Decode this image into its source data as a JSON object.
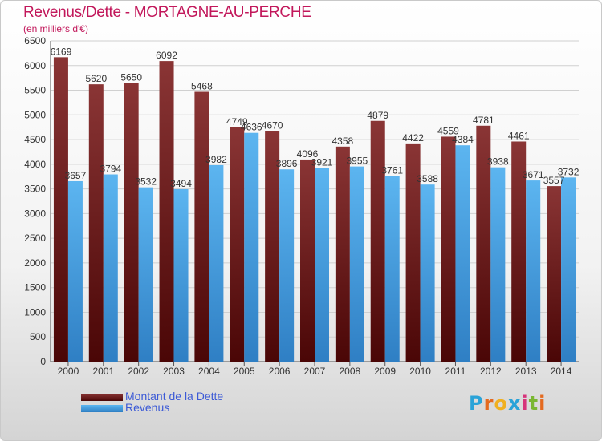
{
  "chart_data": {
    "type": "bar",
    "title": "Revenus/Dette - MORTAGNE-AU-PERCHE",
    "subtitle": "(en milliers d'€)",
    "categories": [
      "2000",
      "2001",
      "2002",
      "2003",
      "2004",
      "2005",
      "2006",
      "2007",
      "2008",
      "2009",
      "2010",
      "2011",
      "2012",
      "2013",
      "2014"
    ],
    "series": [
      {
        "name": "Montant de la Dette",
        "color": "#7a1f1f",
        "values": [
          6169,
          5620,
          5650,
          6092,
          5468,
          4749,
          4670,
          4096,
          4358,
          4879,
          4422,
          4559,
          4781,
          4461,
          3557
        ],
        "labels": [
          "6169",
          "5620",
          "5650",
          "6092",
          "5468",
          "4749",
          "4670",
          "4096",
          "4358",
          "4879",
          "4422",
          "4559",
          "4781",
          "4461",
          "3557"
        ]
      },
      {
        "name": "Revenus",
        "color": "#4da6e8",
        "values": [
          3657,
          3794,
          3532,
          3494,
          3982,
          4636,
          3896,
          3921,
          3955,
          3761,
          3588,
          4384,
          3938,
          3671,
          3732
        ],
        "labels": [
          "3657",
          "3794",
          "3532",
          "3494",
          "3982",
          "4636",
          "3896",
          "3921",
          "3955",
          "3761",
          "3588",
          "4384",
          "3938",
          "3671",
          "3732"
        ]
      }
    ],
    "ylim": [
      0,
      6500
    ],
    "yticks": [
      "0",
      "500",
      "1000",
      "1500",
      "2000",
      "2500",
      "3000",
      "3500",
      "4000",
      "4500",
      "5000",
      "5500",
      "6000",
      "6500"
    ],
    "grid": true,
    "legend_position": "bottom-left"
  },
  "legend": {
    "debt_label": "Montant de la Dette",
    "revenue_label": "Revenus"
  },
  "logo": {
    "letters": [
      "P",
      "r",
      "o",
      "x",
      "i",
      "t",
      "i"
    ],
    "colors": [
      "#2aa3d8",
      "#e46a1f",
      "#f0b020",
      "#2aa3d8",
      "#d6347a",
      "#7ab733",
      "#e46a1f"
    ]
  }
}
